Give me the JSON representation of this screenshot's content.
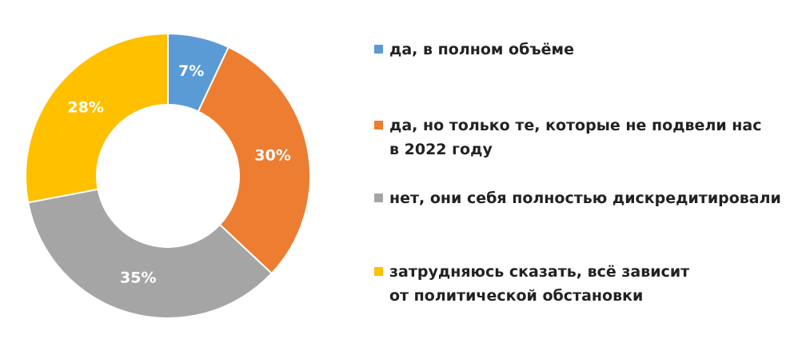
{
  "chart_data": {
    "type": "donut",
    "categories": [
      "да, в полном объёме",
      "да, но только те, которые не подвели нас\nв 2022 году",
      "нет, они себя полностью дискредитировали",
      "затрудняюсь сказать, всё зависит\nот политической обстановки"
    ],
    "values": [
      7,
      30,
      35,
      28
    ],
    "value_labels": [
      "7%",
      "30%",
      "35%",
      "28%"
    ],
    "colors": [
      "#5b9bd5",
      "#ed7d31",
      "#a5a5a5",
      "#ffc000"
    ],
    "legend": "right"
  }
}
